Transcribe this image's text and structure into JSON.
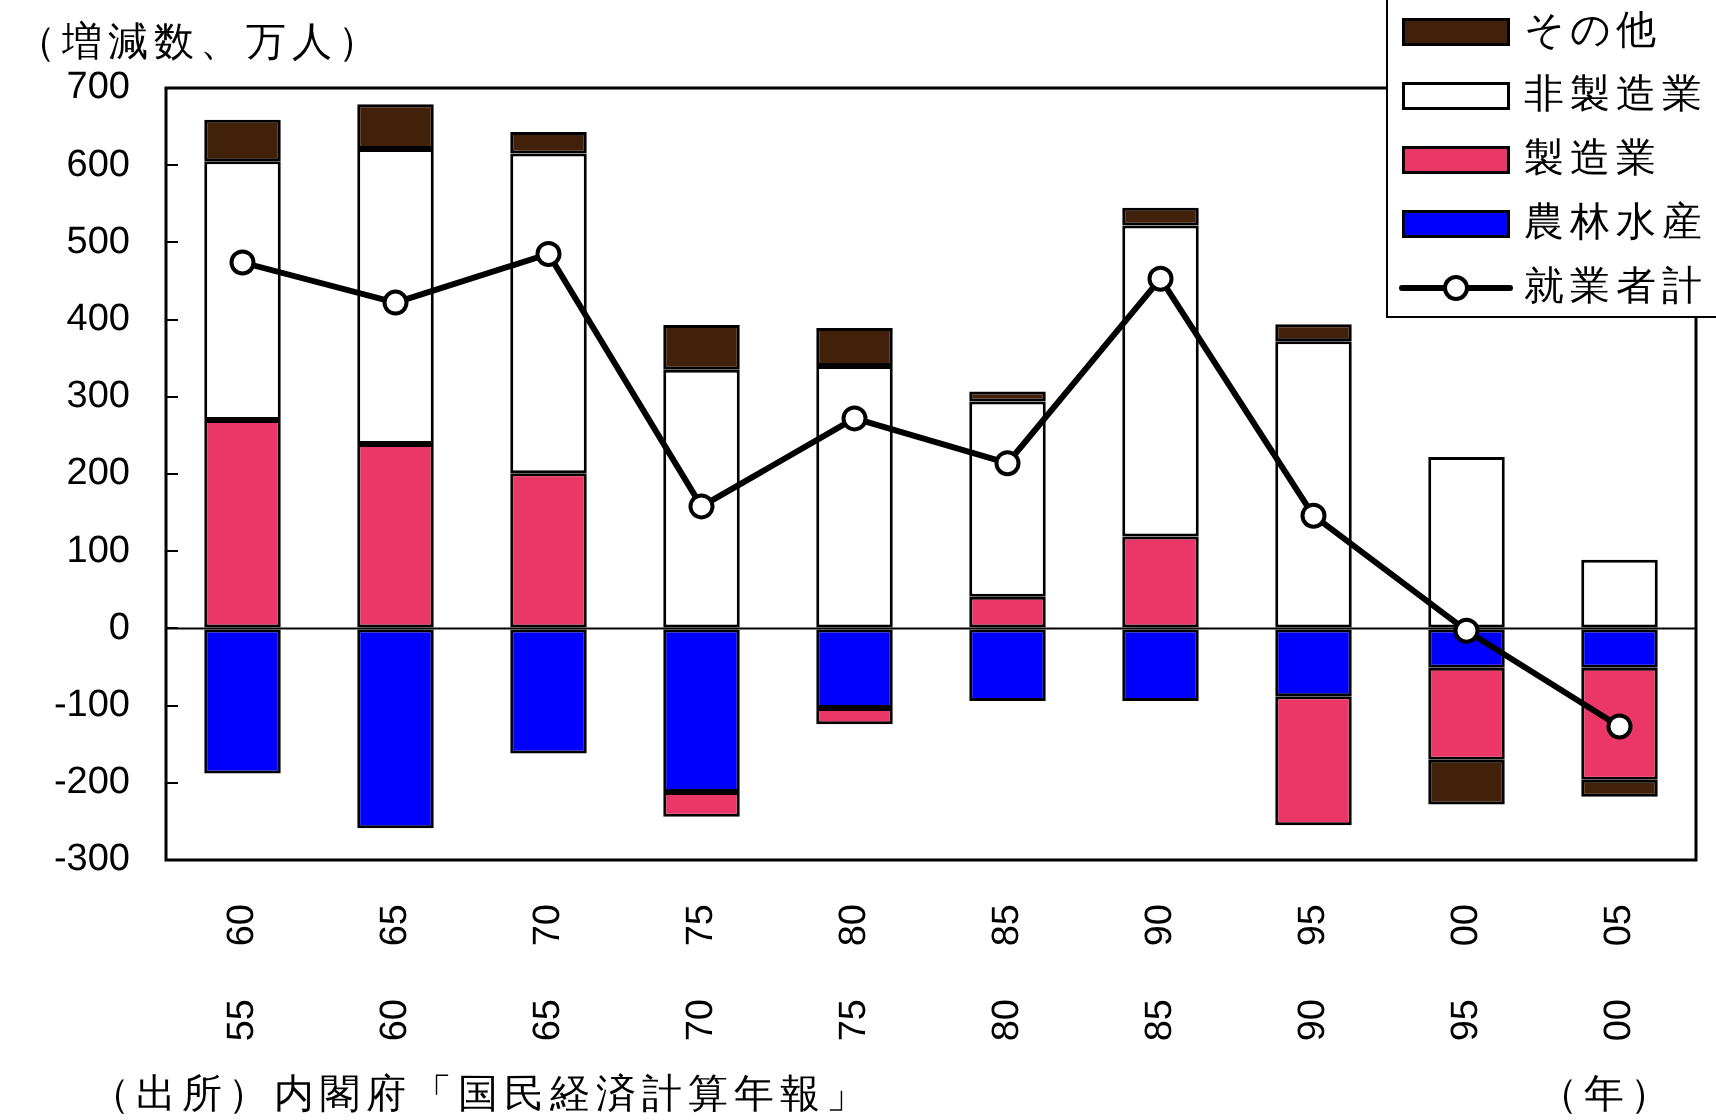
{
  "chart_data": {
    "type": "bar",
    "ylabel": "（増減数、万人）",
    "xlabel": "（年）",
    "annotations": [
      "（出所）内閣府「国民経済計算年報」"
    ],
    "categories": [
      "55     60",
      "60     65",
      "65     70",
      "70     75",
      "75     80",
      "80     85",
      "85     90",
      "90     95",
      "95     00",
      "00     05"
    ],
    "series": [
      {
        "name": "農林水産",
        "color": "#0000ff",
        "values": [
          -188,
          -259,
          -162,
          -212,
          -103,
          -94,
          -94,
          -88,
          -51,
          -51
        ]
      },
      {
        "name": "製造業",
        "color": "#eb3668",
        "values": [
          270,
          239,
          201,
          -32,
          -21,
          41,
          119,
          -167,
          -119,
          -145
        ]
      },
      {
        "name": "非製造業",
        "color": "#ffffff",
        "values": [
          335,
          382,
          414,
          335,
          340,
          253,
          403,
          372,
          222,
          89
        ]
      },
      {
        "name": "その他",
        "color": "#42210b",
        "values": [
          54,
          58,
          28,
          58,
          49,
          13,
          23,
          22,
          -58,
          -22
        ]
      },
      {
        "name": "就業者計",
        "type": "line",
        "color": "#000000",
        "values": [
          474,
          422,
          485,
          158,
          272,
          214,
          453,
          146,
          -3,
          -127
        ]
      }
    ],
    "stacked": true,
    "ylim": [
      -300,
      700
    ],
    "yticks": [
      -300,
      -200,
      -100,
      0,
      100,
      200,
      300,
      400,
      500,
      600,
      700
    ],
    "legend": "top right",
    "marker": "circle"
  }
}
